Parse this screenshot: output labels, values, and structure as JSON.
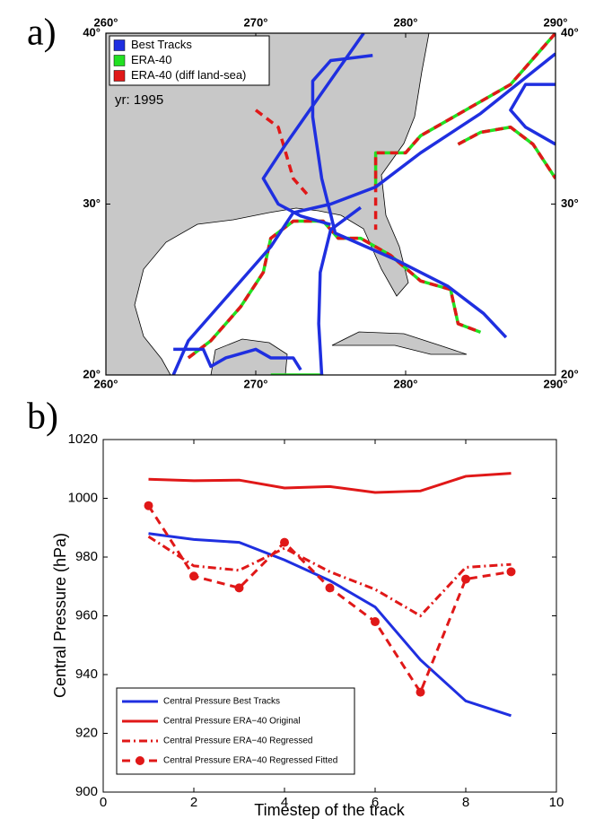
{
  "chart_data": [
    {
      "type": "map",
      "panel_label": "a)",
      "annotation": "yr: 1995",
      "legend": "upper left",
      "xlim": [
        260,
        290
      ],
      "ylim": [
        20,
        40
      ],
      "xticks": [
        {
          "value": 260,
          "label": "260°"
        },
        {
          "value": 270,
          "label": "270°"
        },
        {
          "value": 280,
          "label": "280°"
        },
        {
          "value": 290,
          "label": "290°"
        }
      ],
      "yticks": [
        {
          "value": 20,
          "label": "20°"
        },
        {
          "value": 30,
          "label": "30°"
        },
        {
          "value": 40,
          "label": "40°"
        }
      ],
      "series": [
        {
          "name": "Best Tracks",
          "color": "#1f2fe0",
          "style": "solid",
          "tracks": [
            {
              "x": [
                277.8,
                275.0,
                273.8,
                273.8,
                274.4,
                275.0,
                275.3,
                279.2,
                282.8,
                285.2,
                286.7
              ],
              "y": [
                38.7,
                38.4,
                37.2,
                35.1,
                31.5,
                29.4,
                28.3,
                26.8,
                25.2,
                23.6,
                22.2
              ]
            },
            {
              "x": [
                277.2,
                274.0,
                272.0,
                270.5,
                271.5,
                273.0,
                275.0
              ],
              "y": [
                40,
                36,
                33.5,
                31.5,
                30,
                29.3,
                28.8
              ]
            },
            {
              "x": [
                274.4,
                274.2,
                274.3,
                275.0,
                277.0
              ],
              "y": [
                20,
                23,
                26,
                28.5,
                29.8
              ]
            },
            {
              "x": [
                264.5,
                265.5,
                268.5,
                271.0,
                272.5,
                275.0,
                278.0,
                281.0,
                285.0,
                290.0
              ],
              "y": [
                20,
                22,
                25,
                27.5,
                29.5,
                30,
                31,
                33,
                35.3,
                38.8
              ]
            },
            {
              "x": [
                290,
                288,
                287,
                288,
                290
              ],
              "y": [
                37,
                37,
                35.5,
                34.5,
                33.5
              ]
            },
            {
              "x": [
                264.5,
                266.5,
                267.0,
                268.0,
                270.0,
                271.0,
                272.5,
                273.0
              ],
              "y": [
                21.5,
                21.5,
                20.5,
                21,
                21.5,
                21,
                21,
                20.3
              ]
            }
          ]
        },
        {
          "name": "ERA-40",
          "color": "#22e022",
          "style": "solid",
          "tracks": [
            {
              "x": [
                265.5,
                267.0,
                269.0,
                270.5,
                271.0,
                272.5,
                274.5,
                275.5,
                277.0,
                279.0,
                281.0,
                283.0,
                283.5,
                285.0
              ],
              "y": [
                21,
                22,
                24,
                26,
                28,
                29,
                29,
                28,
                28,
                27,
                25.5,
                25,
                23,
                22.5
              ]
            },
            {
              "x": [
                283.5,
                285.0,
                287.0,
                288.5,
                290.0
              ],
              "y": [
                33.5,
                34.2,
                34.5,
                33.5,
                31.5
              ]
            },
            {
              "x": [
                290,
                287,
                284,
                281,
                280,
                278,
                278
              ],
              "y": [
                40,
                37,
                35.5,
                34,
                33,
                33,
                31
              ]
            },
            {
              "x": [
                271.0,
                272.5,
                274.5
              ],
              "y": [
                20,
                20,
                20
              ]
            }
          ]
        },
        {
          "name": "ERA-40 (diff land-sea)",
          "color": "#e01818",
          "style": "dashed",
          "tracks": [
            {
              "x": [
                265.5,
                267.0,
                269.0,
                270.5,
                271.0,
                272.5,
                274.5,
                275.5,
                277.0,
                279.0,
                281.0,
                283.0,
                283.5,
                285.0
              ],
              "y": [
                21,
                22,
                24,
                26,
                28,
                29,
                29,
                28,
                28,
                27,
                25.5,
                25,
                23,
                22.5
              ]
            },
            {
              "x": [
                283.5,
                285.0,
                287.0,
                288.5,
                290.0
              ],
              "y": [
                33.5,
                34.2,
                34.5,
                33.5,
                31.5
              ]
            },
            {
              "x": [
                290,
                287,
                284,
                281,
                280,
                278,
                278
              ],
              "y": [
                40,
                37,
                35.5,
                34,
                33,
                33,
                28.5
              ]
            },
            {
              "x": [
                270.0,
                271.5,
                272.5,
                273.5
              ],
              "y": [
                35.5,
                34.5,
                31.5,
                30.5
              ]
            }
          ]
        }
      ]
    },
    {
      "type": "line",
      "panel_label": "b)",
      "xlabel": "Timestep of the track",
      "ylabel": "Central Pressure (hPa)",
      "legend": "lower left",
      "xlim": [
        0,
        10
      ],
      "ylim": [
        900,
        1020
      ],
      "xticks": [
        0,
        2,
        4,
        6,
        8,
        10
      ],
      "yticks": [
        900,
        920,
        940,
        960,
        980,
        1000,
        1020
      ],
      "x": [
        1,
        2,
        3,
        4,
        5,
        6,
        7,
        8,
        9
      ],
      "series": [
        {
          "name": "Central Pressure Best Tracks",
          "color": "#1f2fe0",
          "style": "solid",
          "values": [
            988,
            986,
            985,
            979,
            972,
            963,
            945,
            931,
            926
          ]
        },
        {
          "name": "Central Pressure ERA−40 Original",
          "color": "#e01818",
          "style": "solid",
          "values": [
            1006.5,
            1006,
            1006.2,
            1003.5,
            1004,
            1002,
            1002.5,
            1007.5,
            1008.5
          ]
        },
        {
          "name": "Central Pressure ERA−40 Regressed",
          "color": "#e01818",
          "style": "dashdot",
          "values": [
            987,
            977,
            975.5,
            983,
            975,
            969,
            960,
            976.5,
            977.5
          ]
        },
        {
          "name": "Central Pressure ERA−40 Regressed Fitted",
          "color": "#e01818",
          "style": "dashed",
          "marker": "circle",
          "values": [
            997.5,
            973.5,
            969.5,
            985,
            969.5,
            958,
            934,
            972.5,
            975
          ]
        }
      ]
    }
  ]
}
